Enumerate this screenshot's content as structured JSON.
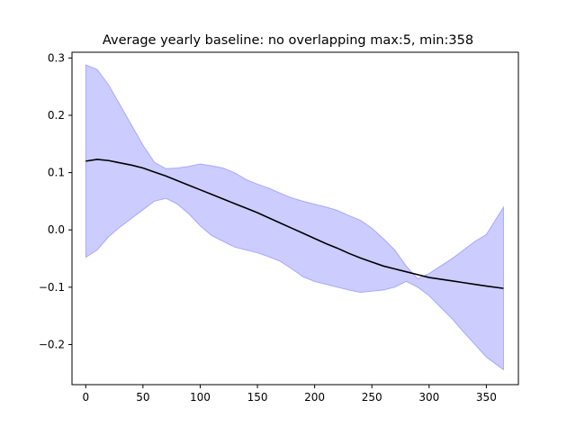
{
  "chart_data": {
    "type": "area",
    "title": "Average yearly baseline: no overlapping max:5, min:358",
    "xlabel": "",
    "ylabel": "",
    "xlim": [
      -12,
      378
    ],
    "ylim": [
      -0.27,
      0.31
    ],
    "xticks": [
      0,
      50,
      100,
      150,
      200,
      250,
      300,
      350
    ],
    "xtick_labels": [
      "0",
      "50",
      "100",
      "150",
      "200",
      "250",
      "300",
      "350"
    ],
    "yticks": [
      0.3,
      0.2,
      0.1,
      0.0,
      -0.1,
      -0.2
    ],
    "ytick_labels": [
      "0.3",
      "0.2",
      "0.1",
      "0.0",
      "−0.1",
      "−0.2"
    ],
    "grid": false,
    "series": [
      {
        "name": "mean",
        "kind": "line",
        "color": "#000000",
        "x": [
          0,
          10,
          20,
          30,
          40,
          50,
          60,
          70,
          80,
          90,
          100,
          110,
          120,
          130,
          140,
          150,
          160,
          170,
          180,
          190,
          200,
          210,
          220,
          230,
          240,
          250,
          260,
          270,
          280,
          290,
          300,
          310,
          320,
          330,
          340,
          350,
          365
        ],
        "values": [
          0.12,
          0.123,
          0.121,
          0.117,
          0.113,
          0.108,
          0.101,
          0.094,
          0.086,
          0.078,
          0.07,
          0.062,
          0.054,
          0.046,
          0.038,
          0.03,
          0.021,
          0.012,
          0.003,
          -0.006,
          -0.015,
          -0.024,
          -0.032,
          -0.041,
          -0.049,
          -0.056,
          -0.063,
          -0.068,
          -0.073,
          -0.078,
          -0.083,
          -0.086,
          -0.089,
          -0.092,
          -0.095,
          -0.098,
          -0.102
        ]
      },
      {
        "name": "range",
        "kind": "band",
        "color": "#0000ff",
        "fill_opacity": 0.2,
        "x": [
          0,
          10,
          20,
          30,
          40,
          50,
          60,
          70,
          80,
          90,
          100,
          110,
          120,
          130,
          140,
          150,
          160,
          170,
          180,
          190,
          200,
          210,
          220,
          230,
          240,
          250,
          260,
          270,
          280,
          290,
          300,
          310,
          320,
          330,
          340,
          350,
          365
        ],
        "upper": [
          0.288,
          0.28,
          0.253,
          0.218,
          0.183,
          0.148,
          0.118,
          0.107,
          0.108,
          0.111,
          0.115,
          0.112,
          0.108,
          0.1,
          0.088,
          0.08,
          0.073,
          0.064,
          0.056,
          0.05,
          0.045,
          0.04,
          0.034,
          0.025,
          0.017,
          0.003,
          -0.015,
          -0.035,
          -0.063,
          -0.085,
          -0.076,
          -0.063,
          -0.05,
          -0.035,
          -0.02,
          -0.008,
          0.04
        ],
        "lower": [
          -0.048,
          -0.035,
          -0.012,
          0.005,
          0.02,
          0.035,
          0.05,
          0.055,
          0.045,
          0.028,
          0.007,
          -0.01,
          -0.02,
          -0.03,
          -0.035,
          -0.04,
          -0.047,
          -0.055,
          -0.068,
          -0.082,
          -0.09,
          -0.095,
          -0.1,
          -0.105,
          -0.109,
          -0.107,
          -0.105,
          -0.1,
          -0.09,
          -0.1,
          -0.115,
          -0.135,
          -0.155,
          -0.178,
          -0.2,
          -0.222,
          -0.244
        ]
      }
    ]
  }
}
